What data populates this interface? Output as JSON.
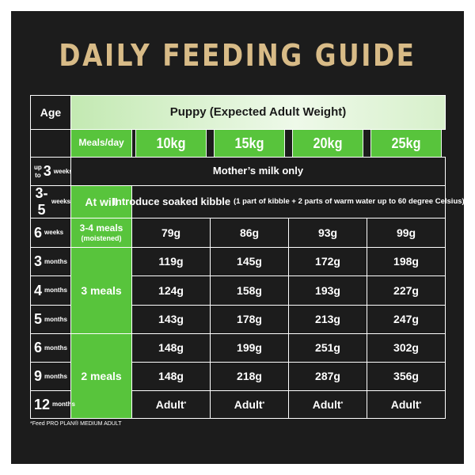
{
  "title": "DAILY FEEDING GUIDE",
  "header": {
    "age_label": "Age",
    "group_label": "Puppy (Expected Adult Weight)",
    "meals_label": "Meals/day",
    "weights": [
      "10kg",
      "15kg",
      "20kg",
      "25kg"
    ]
  },
  "rows": {
    "r0": {
      "num": "3",
      "prefix": "up to",
      "unit": "weeks",
      "span_text": "Mother’s milk only"
    },
    "r1": {
      "num": "3-5",
      "unit": "weeks",
      "meals": "At will",
      "span_main": "Introduce soaked kibble",
      "span_note": "(1 part of kibble + 2 parts of warm water up to 60 degree Celsius)"
    },
    "r2": {
      "num": "6",
      "unit": "weeks",
      "meals_line1": "3-4 meals",
      "meals_line2": "(moistened)",
      "values": [
        "79g",
        "86g",
        "93g",
        "99g"
      ]
    },
    "r3": {
      "num": "3",
      "unit": "months",
      "values": [
        "119g",
        "145g",
        "172g",
        "198g"
      ]
    },
    "r4": {
      "num": "4",
      "unit": "months",
      "values": [
        "124g",
        "158g",
        "193g",
        "227g"
      ]
    },
    "r5": {
      "num": "5",
      "unit": "months",
      "values": [
        "143g",
        "178g",
        "213g",
        "247g"
      ]
    },
    "r6": {
      "num": "6",
      "unit": "months",
      "values": [
        "148g",
        "199g",
        "251g",
        "302g"
      ]
    },
    "r7": {
      "num": "9",
      "unit": "months",
      "values": [
        "148g",
        "218g",
        "287g",
        "356g"
      ]
    },
    "r8": {
      "num": "12",
      "unit": "months",
      "values": [
        "Adult",
        "Adult",
        "Adult",
        "Adult"
      ]
    }
  },
  "meals_merged": {
    "three": "3 meals",
    "two": "2 meals"
  },
  "adult_mark": "*",
  "footnote": "*Feed PRO PLAN® MEDIUM ADULT",
  "colors": {
    "background": "#1c1c1c",
    "title": "#d8bb87",
    "green": "#58c43c",
    "pale_green": "#c3e9b2"
  }
}
